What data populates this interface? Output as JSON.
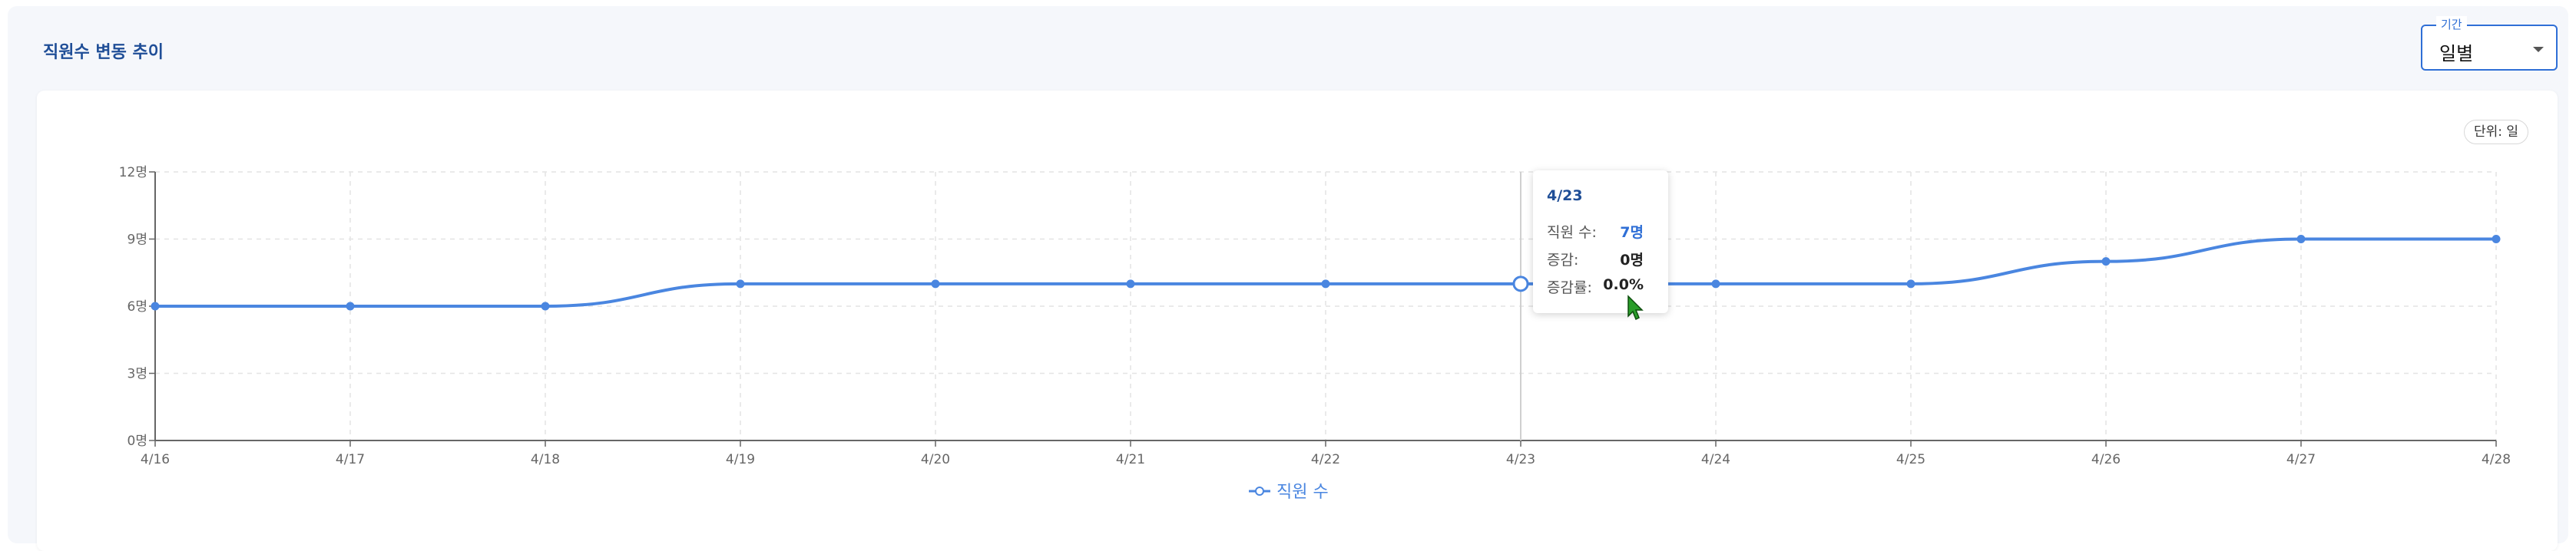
{
  "panel": {
    "title": "직원수 변동 추이"
  },
  "period": {
    "legend": "기간",
    "selected": "일별"
  },
  "unit_badge": "단위: 일",
  "chart_data": {
    "type": "line",
    "categories": [
      "4/16",
      "4/17",
      "4/18",
      "4/19",
      "4/20",
      "4/21",
      "4/22",
      "4/23",
      "4/24",
      "4/25",
      "4/26",
      "4/27",
      "4/28"
    ],
    "series": [
      {
        "name": "직원 수",
        "values": [
          6,
          6,
          6,
          7,
          7,
          7,
          7,
          7,
          7,
          7,
          8,
          9,
          9
        ]
      }
    ],
    "y_ticks": [
      "0명",
      "3명",
      "6명",
      "9명",
      "12명"
    ],
    "ylim": [
      0,
      12
    ],
    "grid": true,
    "legend_position": "bottom-center",
    "color": "#4a86e0"
  },
  "tooltip": {
    "date": "4/23",
    "rows": [
      {
        "label": "직원 수:",
        "value": "7명"
      },
      {
        "label": "증감:",
        "value": "0명"
      },
      {
        "label": "증감률:",
        "value": "0.0%"
      }
    ]
  }
}
